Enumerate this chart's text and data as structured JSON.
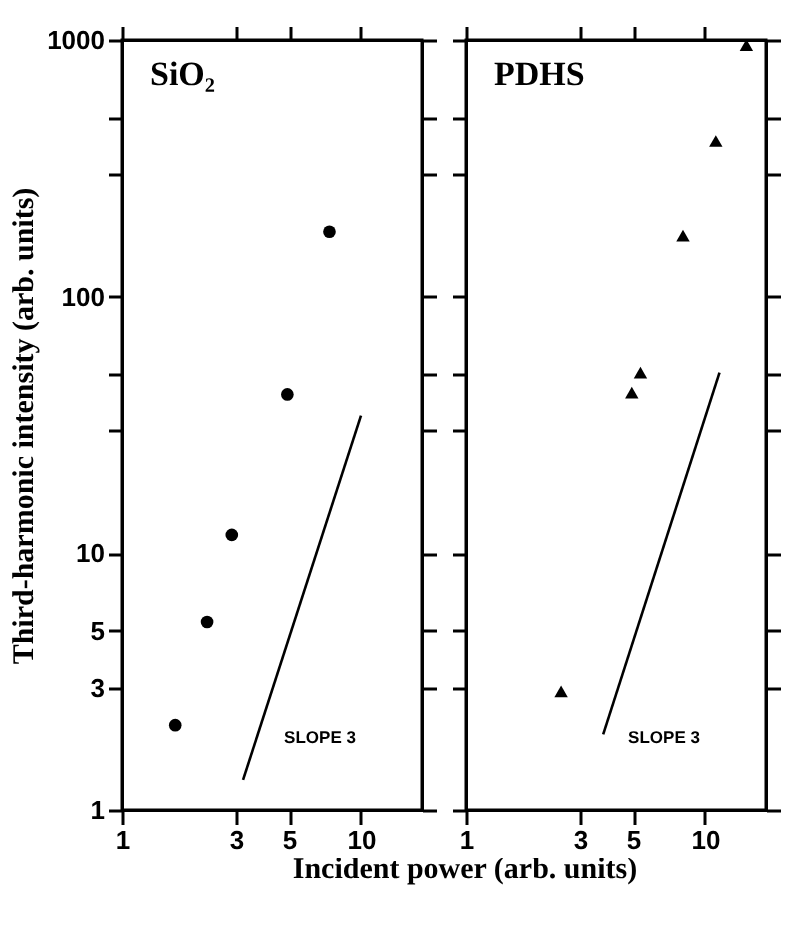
{
  "chart_data": [
    {
      "type": "scatter",
      "title": "SiO₂",
      "xlabel": "Incident power (arb. units)",
      "ylabel": "Third-harmonic intensity (arb. units)",
      "log": "xy",
      "grid": false,
      "xlim": [
        1,
        18
      ],
      "ylim": [
        1,
        1000
      ],
      "xticks": [
        1,
        3,
        5,
        10
      ],
      "yticks": [
        1,
        3,
        5,
        10,
        {
          "value": 30,
          "label": null
        },
        {
          "value": 50,
          "label": null
        },
        100,
        {
          "value": 300,
          "label": null
        },
        {
          "value": 500,
          "label": null
        },
        1000
      ],
      "series": [
        {
          "x": [
            1.67,
            2.27,
            2.88,
            4.92,
            7.38
          ],
          "values": [
            2.14,
            5.4,
            11.8,
            41.6,
            179
          ],
          "color": "#000000",
          "marker": "circle"
        },
        {
          "type": "line",
          "x": [
            3.21,
            10
          ],
          "values": [
            1.31,
            34.4
          ],
          "color": "#000000"
        }
      ],
      "annotations": [
        "SLOPE 3"
      ]
    },
    {
      "type": "scatter",
      "title": "PDHS",
      "log": "xy",
      "grid": false,
      "tick_labels": "x",
      "xlim": [
        1,
        18
      ],
      "ylim": [
        1,
        1000
      ],
      "xticks": [
        1,
        3,
        5,
        10
      ],
      "yticks": [
        1,
        3,
        5,
        10,
        {
          "value": 30,
          "label": null
        },
        {
          "value": 50,
          "label": null
        },
        100,
        {
          "value": 300,
          "label": null
        },
        {
          "value": 500,
          "label": null
        },
        1000
      ],
      "series": [
        {
          "x": [
            2.5,
            4.94,
            5.37,
            8.09,
            11.1,
            14.9
          ],
          "values": [
            2.9,
            42.3,
            50.6,
            173,
            404,
            955
          ],
          "color": "#000000",
          "marker": "triangle"
        },
        {
          "type": "line",
          "x": [
            3.75,
            11.5
          ],
          "values": [
            1.97,
            50.6
          ],
          "color": "#000000"
        }
      ],
      "annotations": [
        "SLOPE 3"
      ]
    }
  ]
}
